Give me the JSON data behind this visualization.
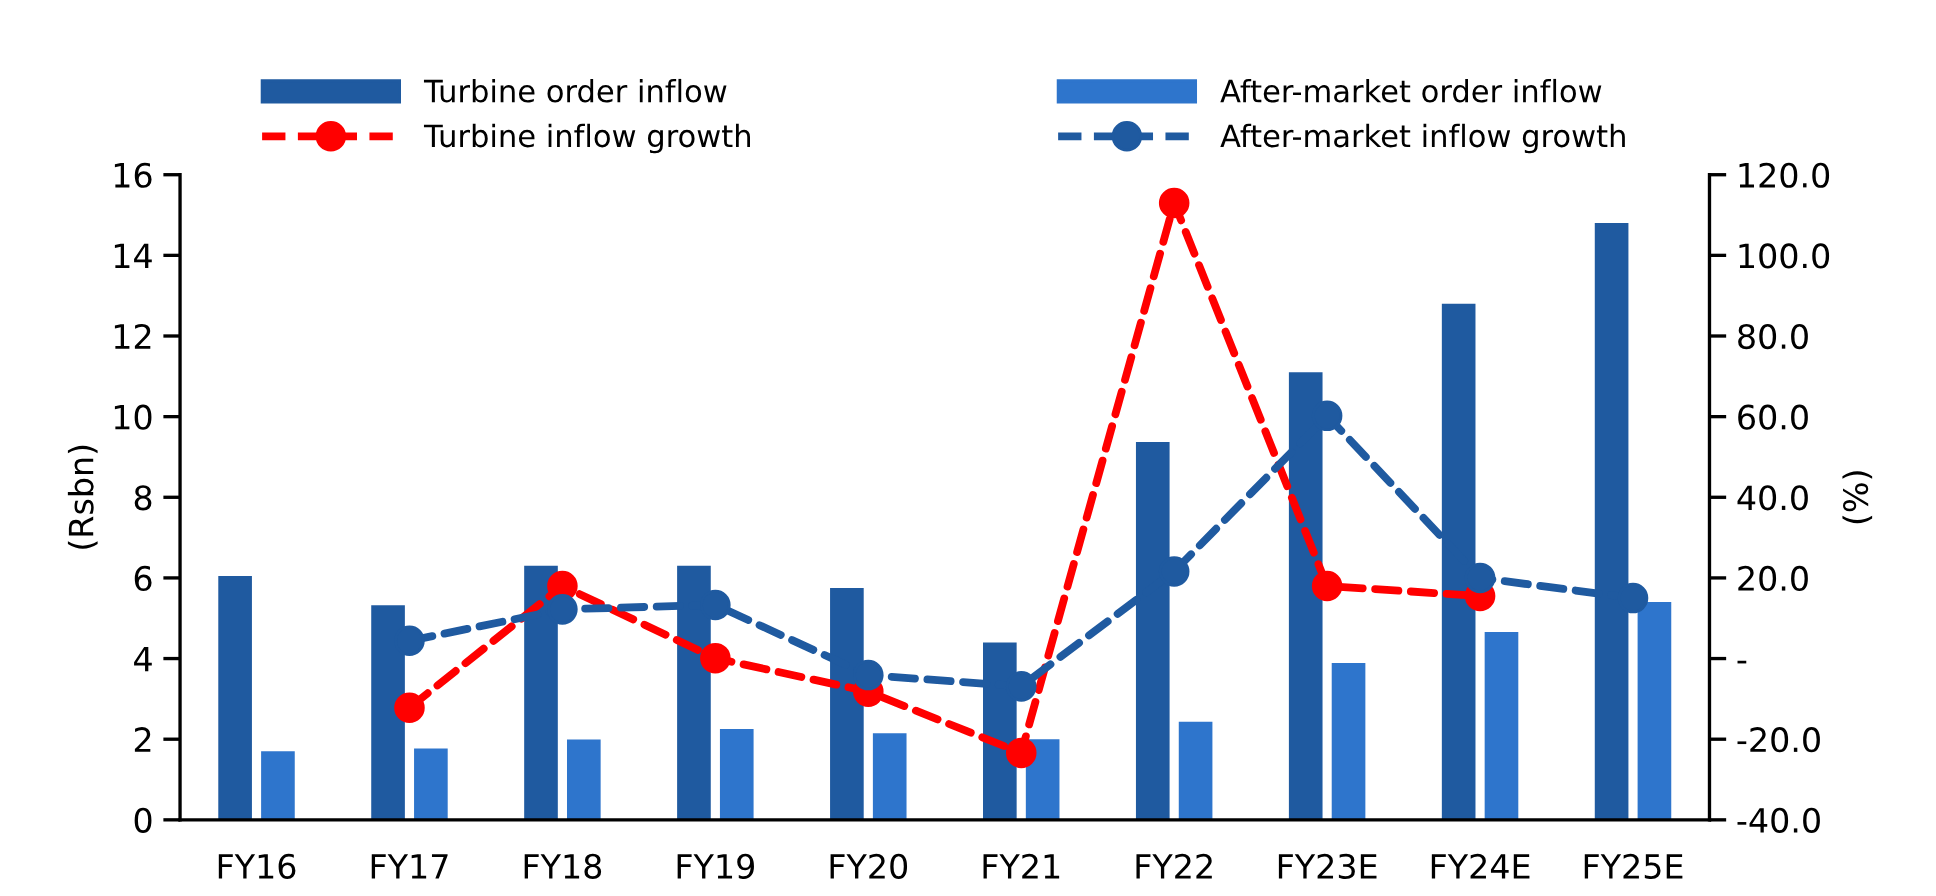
{
  "chart_data": {
    "type": "bar",
    "categories": [
      "FY16",
      "FY17",
      "FY18",
      "FY19",
      "FY20",
      "FY21",
      "FY22",
      "FY23E",
      "FY24E",
      "FY25E"
    ],
    "ylabel": "(Rsbn)",
    "y2label": "(%)",
    "ylim": [
      0,
      16
    ],
    "yticks": [
      0,
      2,
      4,
      6,
      8,
      10,
      12,
      14,
      16
    ],
    "y2lim": [
      -40,
      120
    ],
    "y2ticks": [
      {
        "value": -40,
        "label": "-40.0"
      },
      {
        "value": -20,
        "label": "-20.0"
      },
      {
        "value": 0,
        "label": "-"
      },
      {
        "value": 20,
        "label": "20.0"
      },
      {
        "value": 40,
        "label": "40.0"
      },
      {
        "value": 60,
        "label": "60.0"
      },
      {
        "value": 80,
        "label": "80.0"
      },
      {
        "value": 100,
        "label": "100.0"
      },
      {
        "value": 120,
        "label": "120.0"
      }
    ],
    "legend": "top",
    "grid": false,
    "marker": "circle",
    "line_style": "dashed",
    "series": [
      {
        "name": "Turbine order inflow",
        "color": "#1f5aa0",
        "values": [
          6.05,
          5.32,
          6.3,
          6.3,
          5.75,
          4.4,
          9.37,
          11.1,
          12.8,
          14.8
        ]
      },
      {
        "name": "After-market order inflow",
        "color": "#2e75cc",
        "values": [
          1.7,
          1.77,
          1.99,
          2.25,
          2.15,
          2.0,
          2.43,
          3.89,
          4.66,
          5.4
        ]
      },
      {
        "name": "Turbine inflow growth",
        "type": "line",
        "axis": "y2",
        "color": "#ff0000",
        "values": [
          null,
          -12.2,
          18.0,
          0.1,
          -8.2,
          -23.4,
          113.0,
          18.0,
          15.5,
          null
        ]
      },
      {
        "name": "After-market inflow growth",
        "type": "line",
        "axis": "y2",
        "color": "#1f5aa0",
        "values": [
          null,
          4.4,
          12.2,
          13.3,
          -4.1,
          -6.9,
          21.6,
          60.2,
          20.0,
          15.0
        ]
      }
    ]
  }
}
